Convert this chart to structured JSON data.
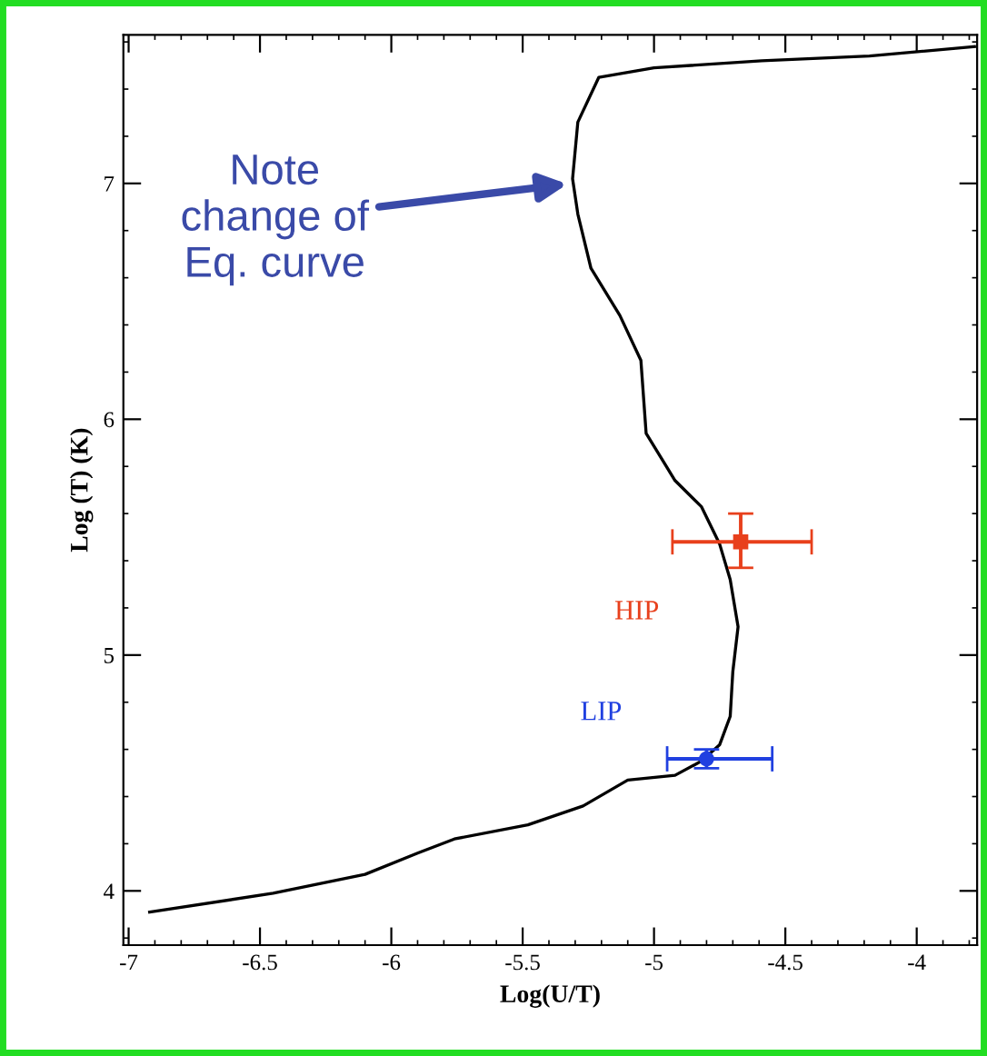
{
  "chart_data": {
    "type": "line",
    "xlabel": "Log(U/T)",
    "ylabel": "Log (T) (K)",
    "xlim": [
      -7.02,
      -3.77
    ],
    "ylim": [
      3.77,
      7.63
    ],
    "xticks": [
      -7,
      -6.5,
      -6,
      -5.5,
      -5,
      -4.5,
      -4
    ],
    "yticks": [
      4,
      5,
      6,
      7
    ],
    "grid": false,
    "legend": false,
    "series": [
      {
        "color": "#000000",
        "x": [
          -6.92,
          -6.45,
          -6.1,
          -5.9,
          -5.76,
          -5.48,
          -5.27,
          -5.1,
          -4.92,
          -4.82,
          -4.75,
          -4.71,
          -4.7,
          -4.68,
          -4.71,
          -4.75,
          -4.82,
          -4.92,
          -5.03,
          -5.05,
          -5.13,
          -5.24,
          -5.29,
          -5.31,
          -5.29,
          -5.21,
          -5.0,
          -4.59,
          -4.18,
          -3.78
        ],
        "values": [
          3.91,
          3.99,
          4.07,
          4.16,
          4.22,
          4.28,
          4.36,
          4.47,
          4.49,
          4.55,
          4.62,
          4.74,
          4.93,
          5.12,
          5.32,
          5.47,
          5.63,
          5.74,
          5.94,
          6.25,
          6.44,
          6.64,
          6.87,
          7.02,
          7.26,
          7.45,
          7.49,
          7.52,
          7.54,
          7.58
        ]
      },
      {
        "type": "scatter",
        "name": "HIP",
        "color": "#e8401c",
        "marker": "square",
        "x": [
          -4.67
        ],
        "values": [
          5.48
        ],
        "errors": [
          [
            5.37,
            5.6
          ]
        ],
        "xerrors": [
          [
            -4.93,
            -4.4
          ]
        ]
      },
      {
        "type": "scatter",
        "name": "LIP",
        "color": "#2040e0",
        "marker": "circle",
        "x": [
          -4.8
        ],
        "values": [
          4.56
        ],
        "errors": [
          [
            4.52,
            4.6
          ]
        ],
        "xerrors": [
          [
            -4.95,
            -4.55
          ]
        ]
      }
    ],
    "annotations": [
      {
        "text": "Note\nchange of\nEq. curve",
        "x": -5.31,
        "y": 7.0
      }
    ]
  }
}
